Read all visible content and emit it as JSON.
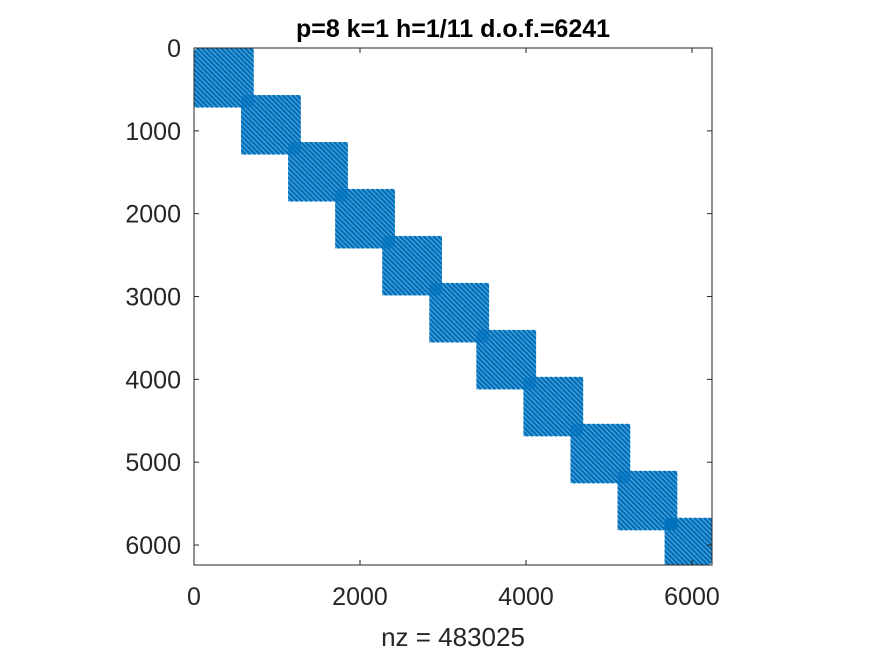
{
  "chart_data": {
    "type": "spy",
    "title": "p=8 k=1 h=1/11 d.o.f.=6241",
    "xlabel": "nz = 483025",
    "ylabel": "",
    "matrix_size": 6241,
    "nonzeros": 483025,
    "xlim": [
      0,
      6241
    ],
    "ylim": [
      6241,
      0
    ],
    "x_ticks": [
      {
        "value": 0,
        "label": "0"
      },
      {
        "value": 2000,
        "label": "2000"
      },
      {
        "value": 4000,
        "label": "4000"
      },
      {
        "value": 6000,
        "label": "6000"
      }
    ],
    "y_ticks": [
      {
        "value": 0,
        "label": "0"
      },
      {
        "value": 1000,
        "label": "1000"
      },
      {
        "value": 2000,
        "label": "2000"
      },
      {
        "value": 3000,
        "label": "3000"
      },
      {
        "value": 4000,
        "label": "4000"
      },
      {
        "value": 5000,
        "label": "5000"
      },
      {
        "value": 6000,
        "label": "6000"
      }
    ],
    "diagonal_blocks": [
      {
        "start": 0,
        "end": 720
      },
      {
        "start": 567,
        "end": 1287
      },
      {
        "start": 1134,
        "end": 1854
      },
      {
        "start": 1701,
        "end": 2421
      },
      {
        "start": 2268,
        "end": 2988
      },
      {
        "start": 2835,
        "end": 3555
      },
      {
        "start": 3402,
        "end": 4122
      },
      {
        "start": 3969,
        "end": 4689
      },
      {
        "start": 4536,
        "end": 5256
      },
      {
        "start": 5103,
        "end": 5823
      },
      {
        "start": 5670,
        "end": 6241
      }
    ],
    "marker_color": "#0072BD",
    "axis_color": "#262626",
    "grid": false
  }
}
